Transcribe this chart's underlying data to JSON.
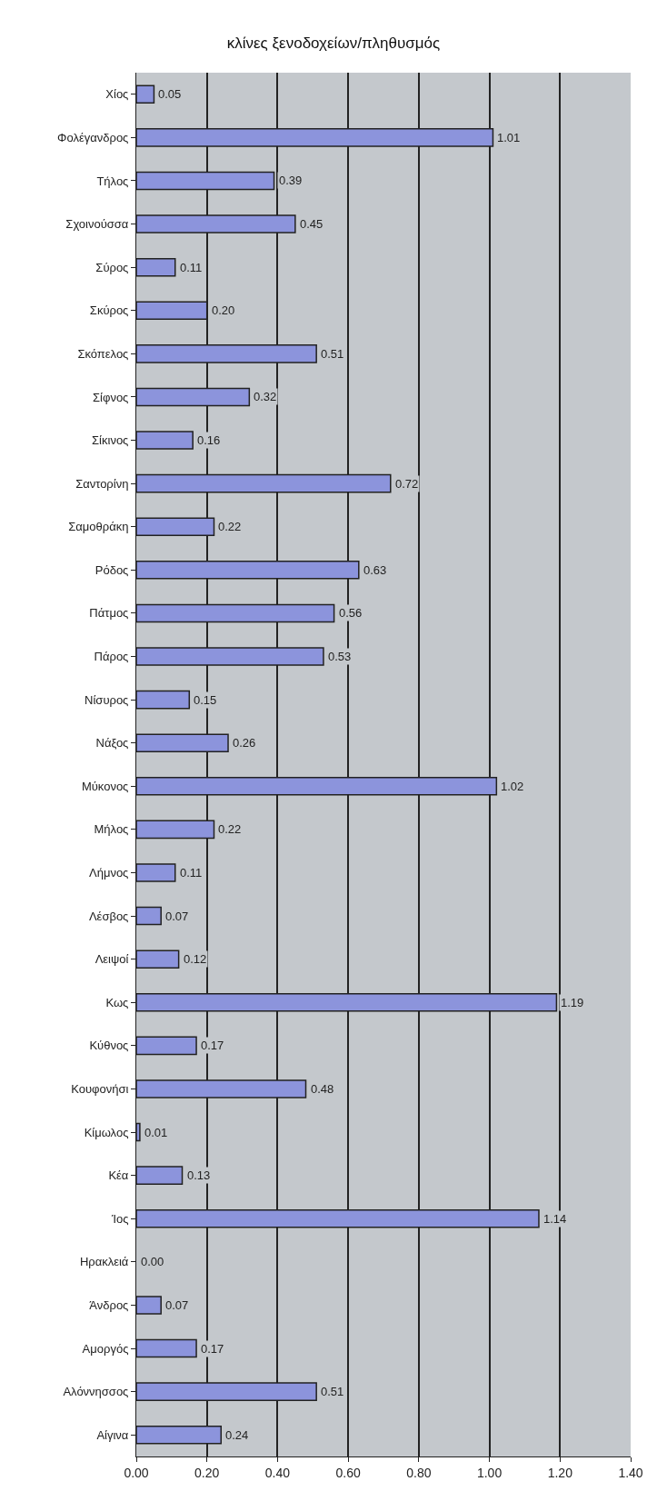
{
  "chart_data": {
    "type": "bar",
    "orientation": "horizontal",
    "title": "κλίνες ξενοδοχείων/πληθυσμός",
    "categories": [
      "Χίος",
      "Φολέγανδρος",
      "Τήλος",
      "Σχοινούσσα",
      "Σύρος",
      "Σκύρος",
      "Σκόπελος",
      "Σίφνος",
      "Σίκινος",
      "Σαντορίνη",
      "Σαμοθράκη",
      "Ρόδος",
      "Πάτμος",
      "Πάρος",
      "Νίσυρος",
      "Νάξος",
      "Μύκονος",
      "Μήλος",
      "Λήμνος",
      "Λέσβος",
      "Λειψοί",
      "Κως",
      "Κύθνος",
      "Κουφονήσι",
      "Κίμωλος",
      "Κέα",
      "Ίος",
      "Ηρακλειά",
      "Άνδρος",
      "Αμοργός",
      "Αλόννησσος",
      "Αίγινα"
    ],
    "values": [
      0.05,
      1.01,
      0.39,
      0.45,
      0.11,
      0.2,
      0.51,
      0.32,
      0.16,
      0.72,
      0.22,
      0.63,
      0.56,
      0.53,
      0.15,
      0.26,
      1.02,
      0.22,
      0.11,
      0.07,
      0.12,
      1.19,
      0.17,
      0.48,
      0.01,
      0.13,
      1.14,
      0.0,
      0.07,
      0.17,
      0.51,
      0.24
    ],
    "value_labels": [
      "0.05",
      "1.01",
      "0.39",
      "0.45",
      "0.11",
      "0.20",
      "0.51",
      "0.32",
      "0.16",
      "0.72",
      "0.22",
      "0.63",
      "0.56",
      "0.53",
      "0.15",
      "0.26",
      "1.02",
      "0.22",
      "0.11",
      "0.07",
      "0.12",
      "1.19",
      "0.17",
      "0.48",
      "0.01",
      "0.13",
      "1.14",
      "0.00",
      "0.07",
      "0.17",
      "0.51",
      "0.24"
    ],
    "color": "#8c94dc",
    "xlim": [
      0,
      1.4
    ],
    "xticks": [
      {
        "value": 0,
        "label": "0.00"
      },
      {
        "value": 0.2,
        "label": "0.20"
      },
      {
        "value": 0.4,
        "label": "0.40"
      },
      {
        "value": 0.6,
        "label": "0.60"
      },
      {
        "value": 0.8,
        "label": "0.80"
      },
      {
        "value": 1.0,
        "label": "1.00"
      },
      {
        "value": 1.2,
        "label": "1.20"
      },
      {
        "value": 1.4,
        "label": "1.40"
      }
    ],
    "grid": "x",
    "legend": false
  }
}
